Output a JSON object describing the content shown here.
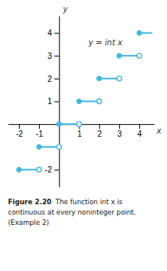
{
  "chart_data": {
    "type": "step",
    "xlabel": "x",
    "ylabel": "y",
    "annotation": "y = int x",
    "color": "#42b8e0",
    "segments": [
      {
        "x_start": -2,
        "x_end": -1,
        "y": -2,
        "left_filled": true,
        "right_open": true
      },
      {
        "x_start": -1,
        "x_end": 0,
        "y": -1,
        "left_filled": true,
        "right_open": true
      },
      {
        "x_start": 0,
        "x_end": 1,
        "y": 0,
        "left_filled": true,
        "right_open": true
      },
      {
        "x_start": 1,
        "x_end": 2,
        "y": 1,
        "left_filled": true,
        "right_open": true
      },
      {
        "x_start": 2,
        "x_end": 3,
        "y": 2,
        "left_filled": true,
        "right_open": true
      },
      {
        "x_start": 3,
        "x_end": 4,
        "y": 3,
        "left_filled": true,
        "right_open": true
      },
      {
        "x_start": 4,
        "x_end": 4.65,
        "y": 4,
        "left_filled": true,
        "right_open": false
      }
    ],
    "xlim": [
      -2.55,
      4.75
    ],
    "ylim": [
      -2.75,
      4.75
    ],
    "xticks": [
      -2,
      -1,
      1,
      2,
      3,
      4
    ],
    "yticks": [
      -2,
      1,
      2,
      3,
      4
    ],
    "grid": false,
    "caption": [
      "Figure 2.20",
      "The function int x is",
      "continuous at every noninteger point.",
      "(Example 2)"
    ]
  }
}
